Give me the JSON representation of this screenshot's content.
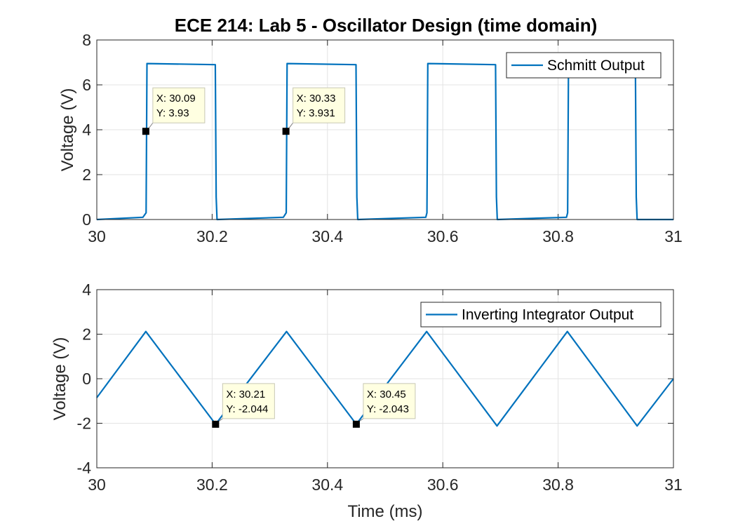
{
  "figure": {
    "title": "ECE 214: Lab 5 - Oscillator Design (time domain)",
    "line_color": "#0072BD"
  },
  "chart_data": [
    {
      "type": "line",
      "title": "ECE 214: Lab 5 - Oscillator Design (time domain)",
      "xlabel": "",
      "ylabel": "Voltage (V)",
      "xlim": [
        30,
        31
      ],
      "ylim": [
        0,
        8
      ],
      "xticks": [
        30,
        30.2,
        30.4,
        30.6,
        30.8,
        31
      ],
      "xtick_labels": [
        "30",
        "30.2",
        "30.4",
        "30.6",
        "30.8",
        "31"
      ],
      "yticks": [
        0,
        2,
        4,
        6,
        8
      ],
      "ytick_labels": [
        "0",
        "2",
        "4",
        "6",
        "8"
      ],
      "grid": true,
      "legend_position": "top-right",
      "series": [
        {
          "name": "Schmitt Output",
          "x": [
            30.0,
            30.08,
            30.0855,
            30.087,
            30.2055,
            30.207,
            30.2085,
            30.3235,
            30.3285,
            30.33,
            30.4495,
            30.451,
            30.4525,
            30.5705,
            30.5725,
            30.574,
            30.6915,
            30.693,
            30.6945,
            30.8145,
            30.8165,
            30.818,
            30.8185,
            30.934,
            30.9355,
            30.937,
            31.0
          ],
          "y": [
            0.0,
            0.1,
            0.3,
            6.95,
            6.9,
            1.0,
            0.0,
            0.1,
            0.3,
            6.95,
            6.9,
            1.0,
            0.0,
            0.1,
            0.3,
            6.95,
            6.9,
            1.0,
            0.0,
            0.1,
            0.3,
            6.95,
            6.9,
            6.9,
            1.0,
            0.0,
            0.0
          ]
        }
      ],
      "datatips": [
        {
          "x": 30.085,
          "y": 3.93,
          "line1": "X: 30.09",
          "line2": "Y: 3.93"
        },
        {
          "x": 30.328,
          "y": 3.931,
          "line1": "X: 30.33",
          "line2": "Y: 3.931"
        }
      ]
    },
    {
      "type": "line",
      "title": "",
      "xlabel": "Time (ms)",
      "ylabel": "Voltage (V)",
      "xlim": [
        30,
        31
      ],
      "ylim": [
        -4,
        4
      ],
      "xticks": [
        30,
        30.2,
        30.4,
        30.6,
        30.8,
        31
      ],
      "xtick_labels": [
        "30",
        "30.2",
        "30.4",
        "30.6",
        "30.8",
        "31"
      ],
      "yticks": [
        -4,
        -2,
        0,
        2,
        4
      ],
      "ytick_labels": [
        "-4",
        "-2",
        "0",
        "2",
        "4"
      ],
      "grid": true,
      "legend_position": "top-right",
      "series": [
        {
          "name": "Inverting Integrator Output",
          "x": [
            30.0,
            30.085,
            30.206,
            30.329,
            30.45,
            30.572,
            30.694,
            30.816,
            30.937,
            31.0
          ],
          "y": [
            -0.85,
            2.12,
            -2.044,
            2.12,
            -2.043,
            2.12,
            -2.12,
            2.12,
            -2.12,
            0.0
          ]
        }
      ],
      "datatips": [
        {
          "x": 30.206,
          "y": -2.044,
          "line1": "X: 30.21",
          "line2": "Y: -2.044"
        },
        {
          "x": 30.45,
          "y": -2.043,
          "line1": "X: 30.45",
          "line2": "Y: -2.043"
        }
      ]
    }
  ]
}
